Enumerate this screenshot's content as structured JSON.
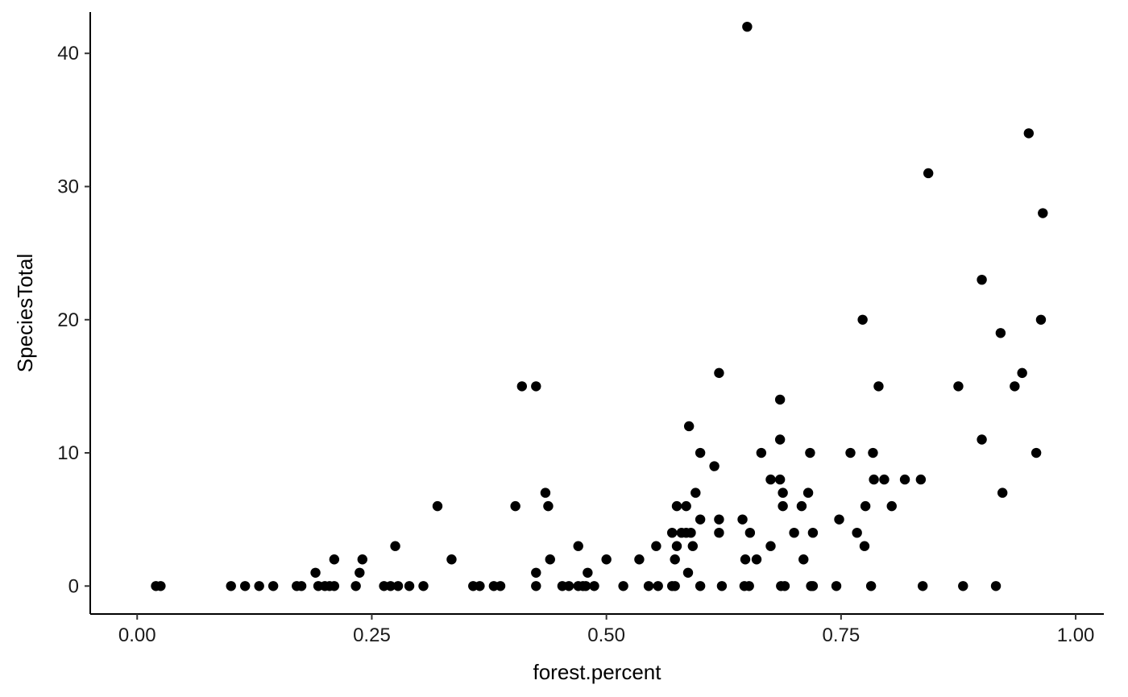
{
  "chart_data": {
    "type": "scatter",
    "xlabel": "forest.percent",
    "ylabel": "SpeciesTotal",
    "xlim": [
      -0.05,
      1.03
    ],
    "ylim": [
      -2.1,
      43.1
    ],
    "xticks": [
      0,
      0.25,
      0.5,
      0.75,
      1
    ],
    "xtick_labels": [
      "0.00",
      "0.25",
      "0.50",
      "0.75",
      "1.00"
    ],
    "yticks": [
      0,
      10,
      20,
      30,
      40
    ],
    "ytick_labels": [
      "0",
      "10",
      "20",
      "30",
      "40"
    ],
    "grid": false,
    "point_color": "#000000",
    "points": [
      [
        0.02,
        0
      ],
      [
        0.025,
        0
      ],
      [
        0.1,
        0
      ],
      [
        0.115,
        0
      ],
      [
        0.13,
        0
      ],
      [
        0.145,
        0
      ],
      [
        0.17,
        0
      ],
      [
        0.175,
        0
      ],
      [
        0.19,
        1
      ],
      [
        0.193,
        0
      ],
      [
        0.2,
        0
      ],
      [
        0.205,
        0
      ],
      [
        0.21,
        2
      ],
      [
        0.21,
        0
      ],
      [
        0.233,
        0
      ],
      [
        0.237,
        1
      ],
      [
        0.24,
        2
      ],
      [
        0.263,
        0
      ],
      [
        0.27,
        0
      ],
      [
        0.275,
        3
      ],
      [
        0.278,
        0
      ],
      [
        0.29,
        0
      ],
      [
        0.305,
        0
      ],
      [
        0.32,
        6
      ],
      [
        0.335,
        2
      ],
      [
        0.358,
        0
      ],
      [
        0.365,
        0
      ],
      [
        0.38,
        0
      ],
      [
        0.387,
        0
      ],
      [
        0.403,
        6
      ],
      [
        0.41,
        15
      ],
      [
        0.425,
        15
      ],
      [
        0.425,
        1
      ],
      [
        0.425,
        0
      ],
      [
        0.435,
        7
      ],
      [
        0.438,
        6
      ],
      [
        0.44,
        2
      ],
      [
        0.453,
        0
      ],
      [
        0.46,
        0
      ],
      [
        0.47,
        3
      ],
      [
        0.47,
        0
      ],
      [
        0.475,
        0
      ],
      [
        0.48,
        1
      ],
      [
        0.478,
        0
      ],
      [
        0.487,
        0
      ],
      [
        0.5,
        2
      ],
      [
        0.518,
        0
      ],
      [
        0.535,
        2
      ],
      [
        0.545,
        0
      ],
      [
        0.555,
        0
      ],
      [
        0.553,
        3
      ],
      [
        0.57,
        4
      ],
      [
        0.57,
        0
      ],
      [
        0.573,
        0
      ],
      [
        0.573,
        2
      ],
      [
        0.575,
        3
      ],
      [
        0.575,
        6
      ],
      [
        0.58,
        4
      ],
      [
        0.585,
        6
      ],
      [
        0.585,
        4
      ],
      [
        0.587,
        1
      ],
      [
        0.588,
        12
      ],
      [
        0.59,
        4
      ],
      [
        0.592,
        3
      ],
      [
        0.595,
        7
      ],
      [
        0.6,
        10
      ],
      [
        0.6,
        5
      ],
      [
        0.6,
        0
      ],
      [
        0.615,
        9
      ],
      [
        0.62,
        16
      ],
      [
        0.62,
        5
      ],
      [
        0.62,
        4
      ],
      [
        0.623,
        0
      ],
      [
        0.645,
        5
      ],
      [
        0.647,
        0
      ],
      [
        0.648,
        2
      ],
      [
        0.65,
        42
      ],
      [
        0.652,
        0
      ],
      [
        0.653,
        4
      ],
      [
        0.66,
        2
      ],
      [
        0.665,
        10
      ],
      [
        0.675,
        8
      ],
      [
        0.675,
        3
      ],
      [
        0.685,
        14
      ],
      [
        0.685,
        11
      ],
      [
        0.685,
        8
      ],
      [
        0.686,
        0
      ],
      [
        0.688,
        7
      ],
      [
        0.688,
        6
      ],
      [
        0.69,
        0
      ],
      [
        0.7,
        4
      ],
      [
        0.708,
        6
      ],
      [
        0.71,
        2
      ],
      [
        0.715,
        7
      ],
      [
        0.717,
        10
      ],
      [
        0.718,
        0
      ],
      [
        0.72,
        0
      ],
      [
        0.72,
        4
      ],
      [
        0.745,
        0
      ],
      [
        0.748,
        5
      ],
      [
        0.76,
        10
      ],
      [
        0.767,
        4
      ],
      [
        0.773,
        20
      ],
      [
        0.775,
        3
      ],
      [
        0.776,
        6
      ],
      [
        0.782,
        0
      ],
      [
        0.784,
        10
      ],
      [
        0.785,
        8
      ],
      [
        0.79,
        15
      ],
      [
        0.796,
        8
      ],
      [
        0.804,
        6
      ],
      [
        0.818,
        8
      ],
      [
        0.835,
        8
      ],
      [
        0.837,
        0
      ],
      [
        0.843,
        31
      ],
      [
        0.875,
        15
      ],
      [
        0.88,
        0
      ],
      [
        0.9,
        23
      ],
      [
        0.9,
        11
      ],
      [
        0.915,
        0
      ],
      [
        0.92,
        19
      ],
      [
        0.922,
        7
      ],
      [
        0.935,
        15
      ],
      [
        0.943,
        16
      ],
      [
        0.95,
        34
      ],
      [
        0.958,
        10
      ],
      [
        0.965,
        28
      ],
      [
        0.963,
        20
      ]
    ]
  }
}
